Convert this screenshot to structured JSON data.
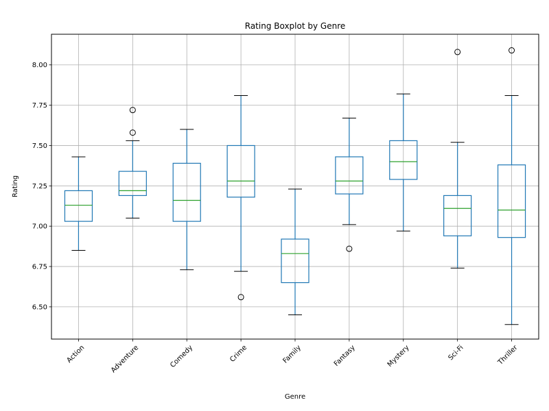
{
  "chart_data": {
    "type": "boxplot",
    "title": "Rating Boxplot by Genre",
    "xlabel": "Genre",
    "ylabel": "Rating",
    "ylim": [
      6.3,
      8.19
    ],
    "yticks": [
      6.5,
      6.75,
      7.0,
      7.25,
      7.5,
      7.75,
      8.0
    ],
    "ytick_labels": [
      "6.50",
      "6.75",
      "7.00",
      "7.25",
      "7.50",
      "7.75",
      "8.00"
    ],
    "grid": true,
    "categories": [
      "Action",
      "Adventure",
      "Comedy",
      "Crime",
      "Family",
      "Fantasy",
      "Mystery",
      "Sci-Fi",
      "Thriller"
    ],
    "boxes": [
      {
        "category": "Action",
        "whisker_low": 6.85,
        "q1": 7.03,
        "median": 7.13,
        "q3": 7.22,
        "whisker_high": 7.43,
        "outliers": []
      },
      {
        "category": "Adventure",
        "whisker_low": 7.05,
        "q1": 7.19,
        "median": 7.22,
        "q3": 7.34,
        "whisker_high": 7.53,
        "outliers": [
          7.58,
          7.72
        ]
      },
      {
        "category": "Comedy",
        "whisker_low": 6.73,
        "q1": 7.03,
        "median": 7.16,
        "q3": 7.39,
        "whisker_high": 7.6,
        "outliers": []
      },
      {
        "category": "Crime",
        "whisker_low": 6.72,
        "q1": 7.18,
        "median": 7.28,
        "q3": 7.5,
        "whisker_high": 7.81,
        "outliers": [
          6.56
        ]
      },
      {
        "category": "Family",
        "whisker_low": 6.45,
        "q1": 6.65,
        "median": 6.83,
        "q3": 6.92,
        "whisker_high": 7.23,
        "outliers": []
      },
      {
        "category": "Fantasy",
        "whisker_low": 7.01,
        "q1": 7.2,
        "median": 7.28,
        "q3": 7.43,
        "whisker_high": 7.67,
        "outliers": [
          6.86
        ]
      },
      {
        "category": "Mystery",
        "whisker_low": 6.97,
        "q1": 7.29,
        "median": 7.4,
        "q3": 7.53,
        "whisker_high": 7.82,
        "outliers": []
      },
      {
        "category": "Sci-Fi",
        "whisker_low": 6.74,
        "q1": 6.94,
        "median": 7.11,
        "q3": 7.19,
        "whisker_high": 7.52,
        "outliers": [
          8.08
        ]
      },
      {
        "category": "Thriller",
        "whisker_low": 6.39,
        "q1": 6.93,
        "median": 7.1,
        "q3": 7.38,
        "whisker_high": 7.81,
        "outliers": [
          8.09
        ]
      }
    ],
    "colors": {
      "box": "#1f77b4",
      "median": "#2ca02c",
      "grid": "#b0b0b0",
      "caps": "#000000",
      "outlier": "#000000"
    }
  }
}
